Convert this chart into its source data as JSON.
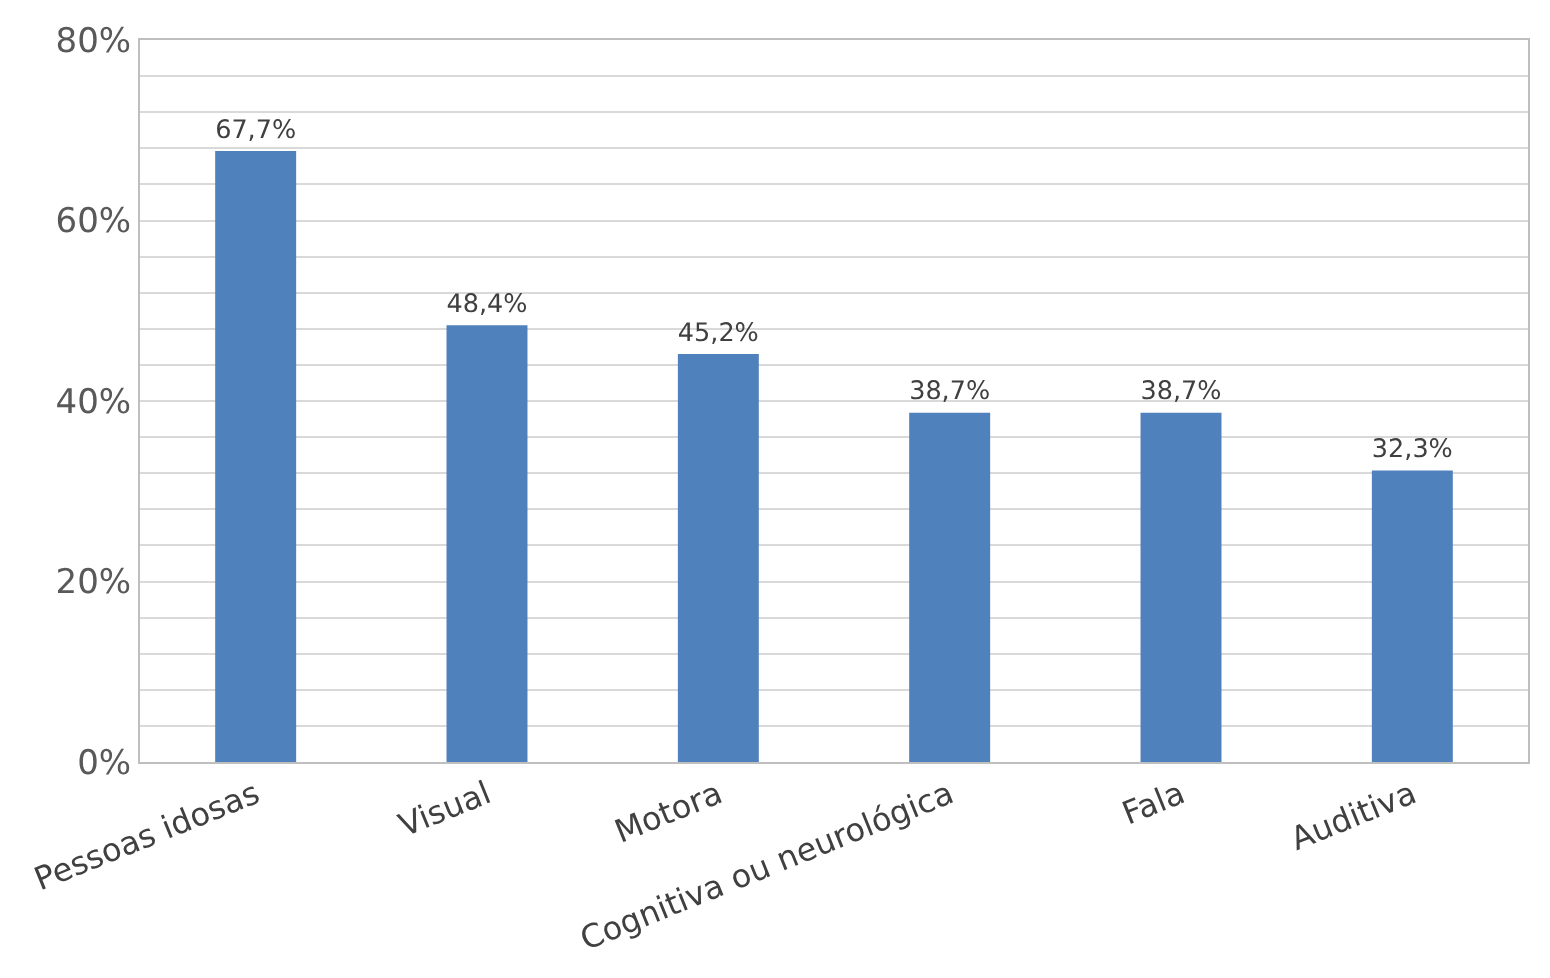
{
  "chart_data": {
    "type": "bar",
    "categories": [
      "Pessoas idosas",
      "Visual",
      "Motora",
      "Cognitiva ou neurológica",
      "Fala",
      "Auditiva"
    ],
    "values": [
      67.7,
      48.4,
      45.2,
      38.7,
      38.7,
      32.3
    ],
    "value_labels": [
      "67,7%",
      "48,4%",
      "45,2%",
      "38,7%",
      "38,7%",
      "32,3%"
    ],
    "color": "#4f81bd",
    "ylim": [
      0,
      80
    ],
    "yticks": [
      {
        "value": 0,
        "label": "0%"
      },
      {
        "value": 4,
        "label": null
      },
      {
        "value": 8,
        "label": null
      },
      {
        "value": 12,
        "label": null
      },
      {
        "value": 16,
        "label": null
      },
      {
        "value": 20,
        "label": "20%"
      },
      {
        "value": 24,
        "label": null
      },
      {
        "value": 28,
        "label": null
      },
      {
        "value": 32,
        "label": null
      },
      {
        "value": 36,
        "label": null
      },
      {
        "value": 40,
        "label": "40%"
      },
      {
        "value": 44,
        "label": null
      },
      {
        "value": 48,
        "label": null
      },
      {
        "value": 52,
        "label": null
      },
      {
        "value": 56,
        "label": null
      },
      {
        "value": 60,
        "label": "60%"
      },
      {
        "value": 64,
        "label": null
      },
      {
        "value": 68,
        "label": null
      },
      {
        "value": 72,
        "label": null
      },
      {
        "value": 76,
        "label": null
      },
      {
        "value": 80,
        "label": "80%"
      }
    ],
    "grid": "y",
    "legend": false
  }
}
